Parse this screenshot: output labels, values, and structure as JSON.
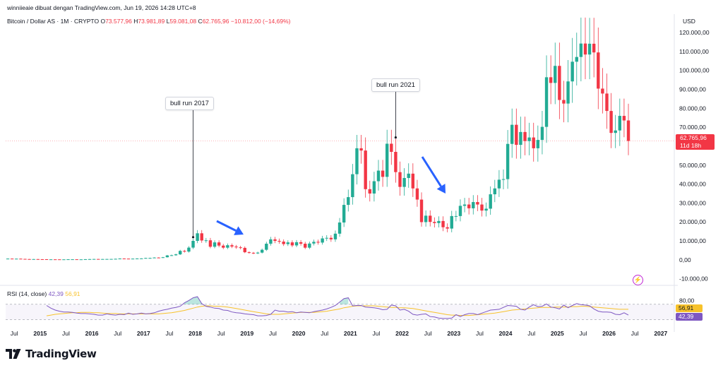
{
  "header": {
    "credit": "winniieaie dibuat dengan TradingView.com, Jun 19, 2026 14:28 UTC+8",
    "symbol": "Bitcoin / Dollar AS · 1M · CRYPTO",
    "o_key": "O",
    "o_val": "73.577,96",
    "h_key": "H",
    "h_val": "73.981,89",
    "l_key": "L",
    "l_val": "59.081,08",
    "c_key": "C",
    "c_val": "62.765,96",
    "change": "−10.812,00 (−14,69%)"
  },
  "currency_label": "USD",
  "last_price_tag": "62.765,96",
  "countdown_tag": "11d 18h",
  "rsi": {
    "label": "RSI (14, close)",
    "value": "42,39",
    "ma_value": "56,91",
    "axis_label": "80,00",
    "rsi_values": [
      67,
      60,
      55,
      52,
      50,
      50,
      49,
      47,
      46,
      46,
      45,
      44,
      42,
      42,
      45,
      43,
      42,
      44,
      43,
      47,
      44,
      45,
      47,
      45,
      46,
      48,
      52,
      55,
      57,
      60,
      62,
      65,
      74,
      80,
      87,
      90,
      72,
      65,
      63,
      60,
      59,
      55,
      54,
      50,
      48,
      47,
      45,
      44,
      43,
      40,
      40,
      41,
      44,
      55,
      52,
      52,
      50,
      51,
      48,
      50,
      49,
      48,
      51,
      53,
      55,
      58,
      62,
      67,
      76,
      85,
      87,
      66,
      67,
      67,
      63,
      62,
      61,
      59,
      56,
      57,
      68,
      66,
      55,
      57,
      52,
      44,
      42,
      44,
      45,
      38,
      37,
      34,
      33,
      33,
      34,
      43,
      38,
      43,
      46,
      46,
      43,
      47,
      51,
      55,
      56,
      57,
      62,
      67,
      66,
      65,
      57,
      55,
      63,
      69,
      64,
      65,
      71,
      63,
      61,
      58,
      68,
      61,
      67,
      72,
      69,
      68,
      66,
      58,
      52,
      50,
      50,
      49,
      44,
      43,
      48,
      42
    ],
    "ma_values": [
      40,
      42,
      44,
      45,
      46,
      47,
      48,
      48,
      49,
      49,
      49,
      48,
      48,
      47,
      46,
      46,
      46,
      45,
      45,
      45,
      45,
      45,
      45,
      45,
      45,
      45,
      45,
      46,
      47,
      48,
      50,
      52,
      54,
      57,
      60,
      63,
      65,
      66,
      66,
      65,
      65,
      64,
      63,
      61,
      59,
      57,
      55,
      53,
      51,
      49,
      47,
      45,
      44,
      44,
      44,
      45,
      46,
      47,
      48,
      49,
      49,
      49,
      49,
      50,
      51,
      52,
      54,
      56,
      58,
      61,
      63,
      65,
      66,
      66,
      66,
      66,
      66,
      65,
      64,
      63,
      62,
      62,
      61,
      61,
      60,
      59,
      57,
      55,
      53,
      51,
      49,
      47,
      45,
      43,
      42,
      42,
      41,
      41,
      41,
      42,
      43,
      44,
      45,
      46,
      47,
      49,
      51,
      53,
      55,
      56,
      57,
      58,
      59,
      60,
      61,
      62,
      62,
      62,
      63,
      63,
      63,
      63,
      64,
      64,
      65,
      65,
      64,
      63,
      62,
      61,
      60,
      59,
      58,
      57,
      57,
      57
    ]
  },
  "bolt_icon": "lightning-bolt-icon",
  "colors": {
    "up": "#22ab94",
    "down": "#f23645",
    "rsi": "#7e57c2",
    "rsi_ma": "#f7c22b",
    "arrow": "#2962ff"
  },
  "brand": {
    "name": "TradingView",
    "logo_icon": "tradingview-logo-icon"
  },
  "annotations": [
    {
      "text": "bull run 2017",
      "date": "2017-12"
    },
    {
      "text": "bull run 2021",
      "date": "2021-11"
    }
  ],
  "chart_data": {
    "type": "candlestick",
    "symbol": "Bitcoin / Dollar AS",
    "interval": "1M",
    "xlim": [
      "2014-05",
      "2027-03"
    ],
    "ylim": [
      -12000,
      126000
    ],
    "x_ticks": [
      "Jul",
      "2015",
      "Jul",
      "2016",
      "Jul",
      "2017",
      "Jul",
      "2018",
      "Jul",
      "2019",
      "Jul",
      "2020",
      "Jul",
      "2021",
      "Jul",
      "2022",
      "Jul",
      "2023",
      "Jul",
      "2024",
      "Jul",
      "2025",
      "Jul",
      "2026",
      "Jul",
      "2027"
    ],
    "x_tick_dates": [
      "2014-07",
      "2015-01",
      "2015-07",
      "2016-01",
      "2016-07",
      "2017-01",
      "2017-07",
      "2018-01",
      "2018-07",
      "2019-01",
      "2019-07",
      "2020-01",
      "2020-07",
      "2021-01",
      "2021-07",
      "2022-01",
      "2022-07",
      "2023-01",
      "2023-07",
      "2024-01",
      "2024-07",
      "2025-01",
      "2025-07",
      "2026-01",
      "2026-07",
      "2027-01"
    ],
    "y_ticks": [
      {
        "v": 120000,
        "label": "120.000,00"
      },
      {
        "v": 110000,
        "label": "110.000,00"
      },
      {
        "v": 100000,
        "label": "100.000,00"
      },
      {
        "v": 90000,
        "label": "90.000,00"
      },
      {
        "v": 80000,
        "label": "80.000,00"
      },
      {
        "v": 70000,
        "label": "70.000,00"
      },
      {
        "v": 50000,
        "label": "50.000,00"
      },
      {
        "v": 40000,
        "label": "40.000,00"
      },
      {
        "v": 30000,
        "label": "30.000,00"
      },
      {
        "v": 20000,
        "label": "20.000,00"
      },
      {
        "v": 10000,
        "label": "10.000,00"
      },
      {
        "v": 0,
        "label": "0,00"
      },
      {
        "v": -10000,
        "label": "-10.000,00"
      }
    ],
    "rsi_ylim": [
      20,
      90
    ],
    "rsi_band": [
      30,
      70
    ],
    "start": "2014-05",
    "closes": [
      630,
      590,
      590,
      480,
      390,
      340,
      380,
      320,
      310,
      220,
      250,
      240,
      230,
      230,
      280,
      280,
      230,
      240,
      330,
      380,
      430,
      370,
      410,
      430,
      450,
      530,
      670,
      620,
      580,
      620,
      700,
      740,
      960,
      970,
      1190,
      1080,
      1350,
      2300,
      2420,
      2880,
      4700,
      4340,
      6440,
      10000,
      14000,
      10200,
      10300,
      6900,
      9200,
      7500,
      6400,
      7700,
      7000,
      6600,
      6300,
      4000,
      3700,
      3400,
      3800,
      5300,
      8500,
      10800,
      10000,
      9600,
      8300,
      9200,
      7600,
      9300,
      8500,
      6400,
      8600,
      9500,
      9100,
      11300,
      11600,
      10800,
      13800,
      19700,
      29000,
      33100,
      45200,
      58900,
      57700,
      37300,
      35000,
      41500,
      47100,
      43800,
      61300,
      57000,
      46300,
      38500,
      43200,
      45500,
      37700,
      31800,
      19900,
      23300,
      20000,
      19400,
      20500,
      17200,
      16500,
      23100,
      23100,
      28500,
      29200,
      27200,
      30500,
      29200,
      26000,
      27000,
      34600,
      37700,
      42300,
      42600,
      61200,
      71300,
      60700,
      67500,
      62700,
      64600,
      58900,
      63300,
      70200,
      96400,
      93400,
      102400,
      84400,
      82500,
      94200,
      104600,
      107100,
      114200,
      108400,
      114100,
      109500,
      90400,
      87800,
      78600,
      67000,
      68300,
      76000,
      73578,
      62766
    ]
  }
}
